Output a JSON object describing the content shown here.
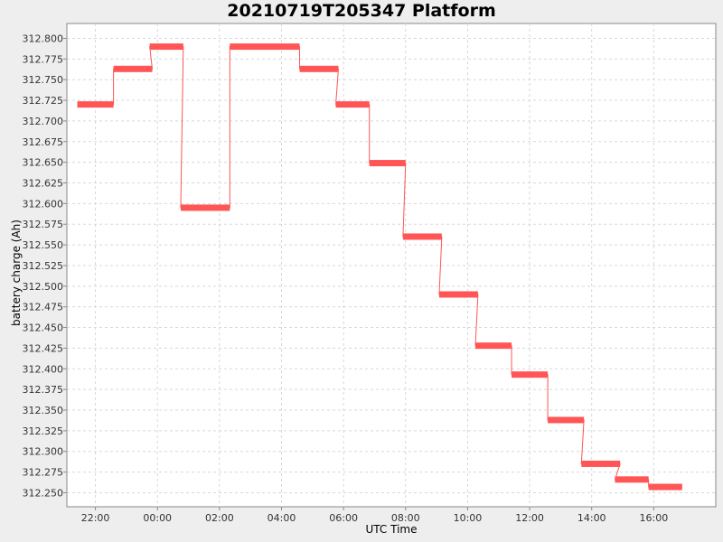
{
  "chart_data": {
    "type": "line",
    "title": "20210719T205347 Platform",
    "xlabel": "UTC Time",
    "ylabel": "battery charge (Ah)",
    "x_ticks": [
      "22:00",
      "00:00",
      "02:00",
      "04:00",
      "06:00",
      "08:00",
      "10:00",
      "12:00",
      "14:00",
      "16:00"
    ],
    "y_ticks": [
      "312.800",
      "312.775",
      "312.750",
      "312.725",
      "312.700",
      "312.675",
      "312.650",
      "312.625",
      "312.600",
      "312.575",
      "312.550",
      "312.525",
      "312.500",
      "312.475",
      "312.450",
      "312.425",
      "312.400",
      "312.375",
      "312.350",
      "312.325",
      "312.300",
      "312.275",
      "312.250"
    ],
    "xlim_hours": [
      -24,
      18.0
    ],
    "ylim": [
      312.233,
      312.818
    ],
    "grid": true,
    "series": [
      {
        "color": "#ff5555",
        "segments": [
          {
            "start": "21:25",
            "end": "22:35",
            "y": 312.72
          },
          {
            "start": "22:35",
            "end": "23:50",
            "y": 312.763
          },
          {
            "start": "23:45",
            "end": "00:50",
            "y": 312.79
          },
          {
            "start": "00:45",
            "end": "02:20",
            "y": 312.595
          },
          {
            "start": "02:20",
            "end": "04:35",
            "y": 312.79
          },
          {
            "start": "04:35",
            "end": "05:50",
            "y": 312.763
          },
          {
            "start": "05:45",
            "end": "06:50",
            "y": 312.72
          },
          {
            "start": "06:50",
            "end": "08:00",
            "y": 312.649
          },
          {
            "start": "07:55",
            "end": "09:10",
            "y": 312.56
          },
          {
            "start": "09:05",
            "end": "10:20",
            "y": 312.49
          },
          {
            "start": "10:15",
            "end": "11:25",
            "y": 312.428
          },
          {
            "start": "11:25",
            "end": "12:35",
            "y": 312.393
          },
          {
            "start": "12:35",
            "end": "13:45",
            "y": 312.338
          },
          {
            "start": "13:40",
            "end": "14:55",
            "y": 312.285
          },
          {
            "start": "14:45",
            "end": "15:50",
            "y": 312.266
          },
          {
            "start": "15:50",
            "end": "16:55",
            "y": 312.257
          }
        ]
      }
    ]
  }
}
